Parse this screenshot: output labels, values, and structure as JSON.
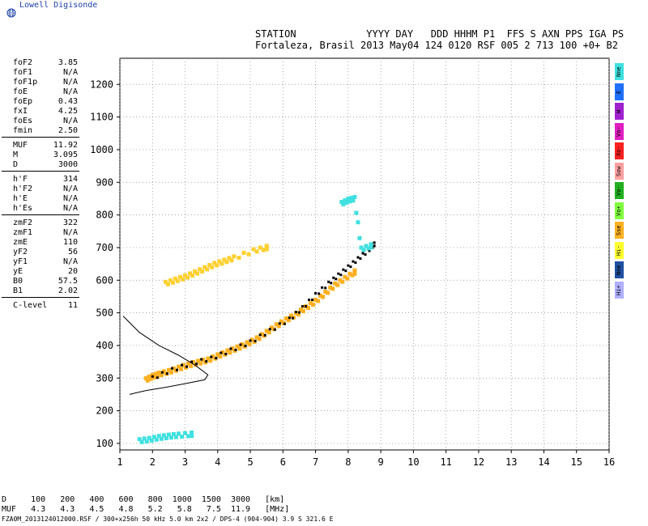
{
  "brand": {
    "name": "Lowell Digisonde",
    "icon": "globe-icon"
  },
  "header": {
    "line1": "STATION            YYYY DAY   DDD HHHM P1  FFS S AXN PPS IGA PS",
    "line2": "Fortaleza, Brasil 2013 May04 124 0120 RSF 005 2 713 100 +0+ B2"
  },
  "params": [
    [
      {
        "label": "foF2",
        "value": "3.85"
      },
      {
        "label": "foF1",
        "value": "N/A"
      },
      {
        "label": "foF1p",
        "value": "N/A"
      },
      {
        "label": "foE",
        "value": "N/A"
      },
      {
        "label": "foEp",
        "value": "0.43"
      },
      {
        "label": "fxI",
        "value": "4.25"
      },
      {
        "label": "foEs",
        "value": "N/A"
      },
      {
        "label": "fmin",
        "value": "2.50"
      }
    ],
    [
      {
        "label": "MUF",
        "value": "11.92"
      },
      {
        "label": "M",
        "value": "3.095"
      },
      {
        "label": "D",
        "value": "3000"
      }
    ],
    [
      {
        "label": "h'F",
        "value": "314"
      },
      {
        "label": "h'F2",
        "value": "N/A"
      },
      {
        "label": "h'E",
        "value": "N/A"
      },
      {
        "label": "h'Es",
        "value": "N/A"
      }
    ],
    [
      {
        "label": "zmF2",
        "value": "322"
      },
      {
        "label": "zmF1",
        "value": "N/A"
      },
      {
        "label": "zmE",
        "value": "110"
      },
      {
        "label": "yF2",
        "value": "56"
      },
      {
        "label": "yF1",
        "value": "N/A"
      },
      {
        "label": "yE",
        "value": "20"
      },
      {
        "label": "B0",
        "value": "57.5"
      },
      {
        "label": "B1",
        "value": "2.02"
      }
    ],
    [
      {
        "label": "C-level",
        "value": "11"
      }
    ]
  ],
  "legend": [
    {
      "label": "Nne",
      "color": "#40e0e0"
    },
    {
      "label": "E",
      "color": "#2070ff"
    },
    {
      "label": "W",
      "color": "#a020d0"
    },
    {
      "label": "Vo-",
      "color": "#e020c0"
    },
    {
      "label": "Xo-",
      "color": "#ff2020"
    },
    {
      "label": "Sow",
      "color": "#ffa0a0"
    },
    {
      "label": "Vo-",
      "color": "#20b020"
    },
    {
      "label": "Vo+",
      "color": "#80ff40"
    },
    {
      "label": "Sse",
      "color": "#ffb020"
    },
    {
      "label": "Hi-",
      "color": "#ffff30"
    },
    {
      "label": "Nne",
      "color": "#2050a0"
    },
    {
      "label": "Hi+",
      "color": "#b0b0ff"
    }
  ],
  "freq_table": {
    "row1": "D     100   200   400   600   800  1000  1500  3000   [km]",
    "row2": "MUF   4.3   4.3   4.5   4.8   5.2   5.8   7.5  11.9   [MHz]"
  },
  "footer": "FZA0M_2013124012000.RSF / 300+x256h 50 kHz 5.0 km 2x2 / DPS-4 (904-904)  3.9 S 321.6 E",
  "chart_data": {
    "type": "scatter",
    "xlim": [
      1,
      16
    ],
    "ylim": [
      80,
      1280
    ],
    "x_ticks": [
      "1",
      "2",
      "3",
      "4",
      "5",
      "6",
      "7",
      "8",
      "9",
      "10",
      "11",
      "12",
      "13",
      "14",
      "15",
      "16"
    ],
    "y_ticks": [
      "100",
      "200",
      "300",
      "400",
      "500",
      "600",
      "700",
      "800",
      "900",
      "1000",
      "1100",
      "1200"
    ],
    "grid": "dotted",
    "profile_curve": [
      [
        1.1,
        490
      ],
      [
        1.6,
        440
      ],
      [
        2.2,
        400
      ],
      [
        2.8,
        370
      ],
      [
        3.3,
        340
      ],
      [
        3.7,
        310
      ],
      [
        3.6,
        295
      ],
      [
        3.0,
        283
      ],
      [
        2.4,
        272
      ],
      [
        1.8,
        262
      ],
      [
        1.5,
        255
      ],
      [
        1.3,
        250
      ]
    ],
    "traces": [
      {
        "name": "o-trace F",
        "color": "#ffb020",
        "points": [
          [
            1.8,
            295
          ],
          [
            2.0,
            305
          ],
          [
            2.2,
            312
          ],
          [
            2.5,
            320
          ],
          [
            2.8,
            330
          ],
          [
            3.1,
            340
          ],
          [
            3.4,
            348
          ],
          [
            3.7,
            355
          ],
          [
            4.0,
            368
          ],
          [
            4.3,
            380
          ],
          [
            4.6,
            392
          ],
          [
            4.9,
            405
          ],
          [
            5.2,
            420
          ],
          [
            5.5,
            440
          ],
          [
            5.8,
            460
          ],
          [
            6.1,
            478
          ],
          [
            6.4,
            495
          ],
          [
            6.7,
            515
          ],
          [
            7.0,
            535
          ],
          [
            7.3,
            560
          ],
          [
            7.6,
            585
          ],
          [
            7.9,
            605
          ],
          [
            8.2,
            625
          ]
        ]
      },
      {
        "name": "black F",
        "color": "#000000",
        "points": [
          [
            2.0,
            300
          ],
          [
            2.6,
            325
          ],
          [
            3.2,
            345
          ],
          [
            3.8,
            360
          ],
          [
            4.4,
            385
          ],
          [
            5.0,
            410
          ],
          [
            5.6,
            445
          ],
          [
            6.2,
            480
          ],
          [
            6.6,
            515
          ],
          [
            7.0,
            555
          ],
          [
            7.4,
            590
          ],
          [
            7.7,
            615
          ],
          [
            8.0,
            640
          ],
          [
            8.3,
            665
          ],
          [
            8.6,
            690
          ],
          [
            8.8,
            710
          ]
        ]
      },
      {
        "name": "multihop",
        "color": "#ffd030",
        "points": [
          [
            2.4,
            590
          ],
          [
            2.7,
            600
          ],
          [
            3.0,
            610
          ],
          [
            3.3,
            622
          ],
          [
            3.6,
            635
          ],
          [
            3.9,
            648
          ],
          [
            4.2,
            658
          ],
          [
            4.5,
            668
          ],
          [
            5.1,
            690
          ],
          [
            5.5,
            700
          ]
        ]
      },
      {
        "name": "E spread",
        "color": "#40e0e0",
        "points": [
          [
            1.6,
            108
          ],
          [
            1.9,
            112
          ],
          [
            2.2,
            118
          ],
          [
            2.5,
            122
          ],
          [
            2.8,
            125
          ],
          [
            3.2,
            128
          ]
        ]
      },
      {
        "name": "high echoes",
        "color": "#40e0e0",
        "points": [
          [
            7.8,
            835
          ],
          [
            8.0,
            845
          ],
          [
            8.2,
            850
          ],
          [
            8.4,
            695
          ],
          [
            8.7,
            705
          ]
        ]
      }
    ]
  }
}
